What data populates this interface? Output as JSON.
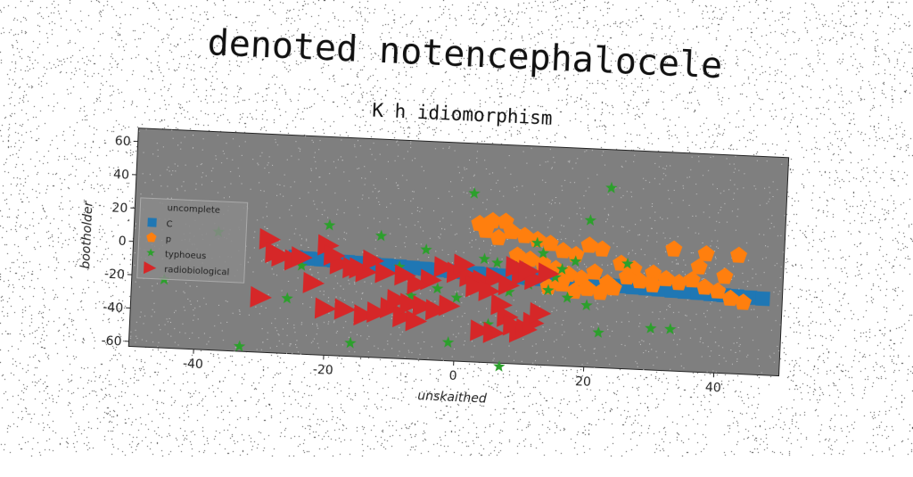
{
  "chart_data": {
    "type": "scatter",
    "title": "denoted notencephalocele",
    "subtitle": "K h idiomorphism",
    "xlabel": "unskaithed",
    "ylabel": "bootholder",
    "xlim": [
      -50,
      50
    ],
    "ylim": [
      -63,
      68
    ],
    "xticks": [
      -40,
      -20,
      0,
      20,
      40
    ],
    "yticks": [
      -60,
      -40,
      -20,
      0,
      20,
      40,
      60
    ],
    "grid": false,
    "legend": {
      "title": "uncomplete",
      "position": "left"
    },
    "series": [
      {
        "name": "C",
        "marker": "square",
        "color": "#1f77b4",
        "points": [
          [
            -25,
            -5
          ],
          [
            -23,
            -5.5
          ],
          [
            -21,
            -5.7
          ],
          [
            -19,
            -6
          ],
          [
            -17,
            -6.5
          ],
          [
            -15,
            -6.8
          ],
          [
            -13,
            -7.2
          ],
          [
            -11,
            -7.5
          ],
          [
            -9,
            -7.8
          ],
          [
            -7,
            -8.2
          ],
          [
            -5,
            -8.5
          ],
          [
            -3,
            -8.8
          ],
          [
            -1,
            -9.2
          ],
          [
            1,
            -9.5
          ],
          [
            3,
            -9.8
          ],
          [
            5,
            -10.2
          ],
          [
            7,
            -10.5
          ],
          [
            9,
            -10.9
          ],
          [
            11,
            -11.2
          ],
          [
            13,
            -11.5
          ],
          [
            15,
            -11.9
          ],
          [
            17,
            -12.2
          ],
          [
            19,
            -12.5
          ],
          [
            21,
            -12.9
          ],
          [
            23,
            -13.2
          ],
          [
            25,
            -13.5
          ],
          [
            27,
            -13.9
          ],
          [
            29,
            -14.2
          ],
          [
            31,
            -14.5
          ],
          [
            33,
            -14.9
          ],
          [
            35,
            -15.2
          ],
          [
            37,
            -15.5
          ],
          [
            39,
            -15.9
          ],
          [
            41,
            -16.2
          ],
          [
            43,
            -16.5
          ],
          [
            45,
            -16.9
          ],
          [
            47,
            -17.2
          ]
        ]
      },
      {
        "name": "p",
        "marker": "pentagon",
        "color": "#ff7f0e",
        "points": [
          [
            3,
            20
          ],
          [
            5,
            22
          ],
          [
            7,
            22
          ],
          [
            4,
            16
          ],
          [
            6,
            12
          ],
          [
            8,
            16
          ],
          [
            10,
            14
          ],
          [
            12,
            12
          ],
          [
            14,
            10
          ],
          [
            16,
            6
          ],
          [
            18,
            4
          ],
          [
            20,
            10
          ],
          [
            22,
            8
          ],
          [
            9,
            2
          ],
          [
            11,
            0
          ],
          [
            13,
            -2
          ],
          [
            15,
            -5
          ],
          [
            17,
            -8
          ],
          [
            19,
            -10
          ],
          [
            21,
            -6
          ],
          [
            23,
            -12
          ],
          [
            16,
            -14
          ],
          [
            18,
            -18
          ],
          [
            20,
            -16
          ],
          [
            14,
            -16
          ],
          [
            25,
            0
          ],
          [
            27,
            -3
          ],
          [
            30,
            -5
          ],
          [
            32,
            -8
          ],
          [
            34,
            -10
          ],
          [
            36,
            -8
          ],
          [
            38,
            -12
          ],
          [
            40,
            -14
          ],
          [
            42,
            -18
          ],
          [
            44,
            -20
          ],
          [
            33,
            10
          ],
          [
            38,
            8
          ],
          [
            43,
            8
          ],
          [
            37,
            0
          ],
          [
            41,
            -5
          ],
          [
            22,
            -18
          ],
          [
            24,
            -15
          ],
          [
            28,
            -10
          ],
          [
            26,
            -8
          ],
          [
            30,
            -12
          ]
        ]
      },
      {
        "name": "typhoeus",
        "marker": "star",
        "color": "#2ca02c",
        "points": [
          [
            -37,
            8
          ],
          [
            -45,
            -22
          ],
          [
            -33,
            -60
          ],
          [
            -20,
            15
          ],
          [
            -16,
            -55
          ],
          [
            -12,
            10
          ],
          [
            -9,
            -8
          ],
          [
            -5,
            3
          ],
          [
            -3,
            -20
          ],
          [
            0,
            -25
          ],
          [
            2,
            38
          ],
          [
            4,
            -1
          ],
          [
            6,
            -3
          ],
          [
            7,
            -65
          ],
          [
            9,
            -5
          ],
          [
            12,
            10
          ],
          [
            13,
            4
          ],
          [
            14,
            -18
          ],
          [
            15,
            -10
          ],
          [
            16,
            -5
          ],
          [
            17,
            -22
          ],
          [
            18,
            0
          ],
          [
            20,
            -26
          ],
          [
            20,
            25
          ],
          [
            22,
            -42
          ],
          [
            23,
            45
          ],
          [
            26,
            0
          ],
          [
            30,
            -38
          ],
          [
            33,
            -38
          ],
          [
            11,
            -15
          ],
          [
            -26,
            -30
          ],
          [
            -24,
            -10
          ],
          [
            -1,
            -52
          ],
          [
            -7,
            -25
          ],
          [
            5,
            -40
          ],
          [
            8,
            -20
          ],
          [
            3,
            -15
          ]
        ]
      },
      {
        "name": "radiobiological",
        "marker": "triangle-right",
        "color": "#d62728",
        "points": [
          [
            -30,
            -30
          ],
          [
            -29,
            5
          ],
          [
            -28,
            -3
          ],
          [
            -27,
            -5
          ],
          [
            -25,
            -7
          ],
          [
            -22,
            -20
          ],
          [
            -20,
            3
          ],
          [
            -18,
            -8
          ],
          [
            -16,
            -10
          ],
          [
            -14,
            -12
          ],
          [
            -20,
            -35
          ],
          [
            -17,
            -35
          ],
          [
            -14,
            -38
          ],
          [
            -12,
            -36
          ],
          [
            -10,
            -33
          ],
          [
            -8,
            -38
          ],
          [
            -6,
            -40
          ],
          [
            -9,
            -28
          ],
          [
            -7,
            -30
          ],
          [
            -5,
            -31
          ],
          [
            -3,
            -33
          ],
          [
            -1,
            -30
          ],
          [
            -2,
            -7
          ],
          [
            0,
            -10
          ],
          [
            2,
            -12
          ],
          [
            4,
            -14
          ],
          [
            6,
            -12
          ],
          [
            8,
            -16
          ],
          [
            10,
            -10
          ],
          [
            12,
            -12
          ],
          [
            14,
            -8
          ],
          [
            1,
            -5
          ],
          [
            -4,
            -15
          ],
          [
            -6,
            -18
          ],
          [
            -8,
            -13
          ],
          [
            9,
            -5
          ],
          [
            11,
            -7
          ],
          [
            3,
            -18
          ],
          [
            5,
            -20
          ],
          [
            7,
            -28
          ],
          [
            8,
            -35
          ],
          [
            9,
            -40
          ],
          [
            10,
            -44
          ],
          [
            11,
            -42
          ],
          [
            6,
            -45
          ],
          [
            4,
            -44
          ],
          [
            12,
            -38
          ],
          [
            13,
            -32
          ],
          [
            -24,
            -5
          ],
          [
            -19,
            -3
          ],
          [
            -15,
            -10
          ],
          [
            -13,
            -5
          ],
          [
            -11,
            -12
          ]
        ]
      }
    ]
  }
}
